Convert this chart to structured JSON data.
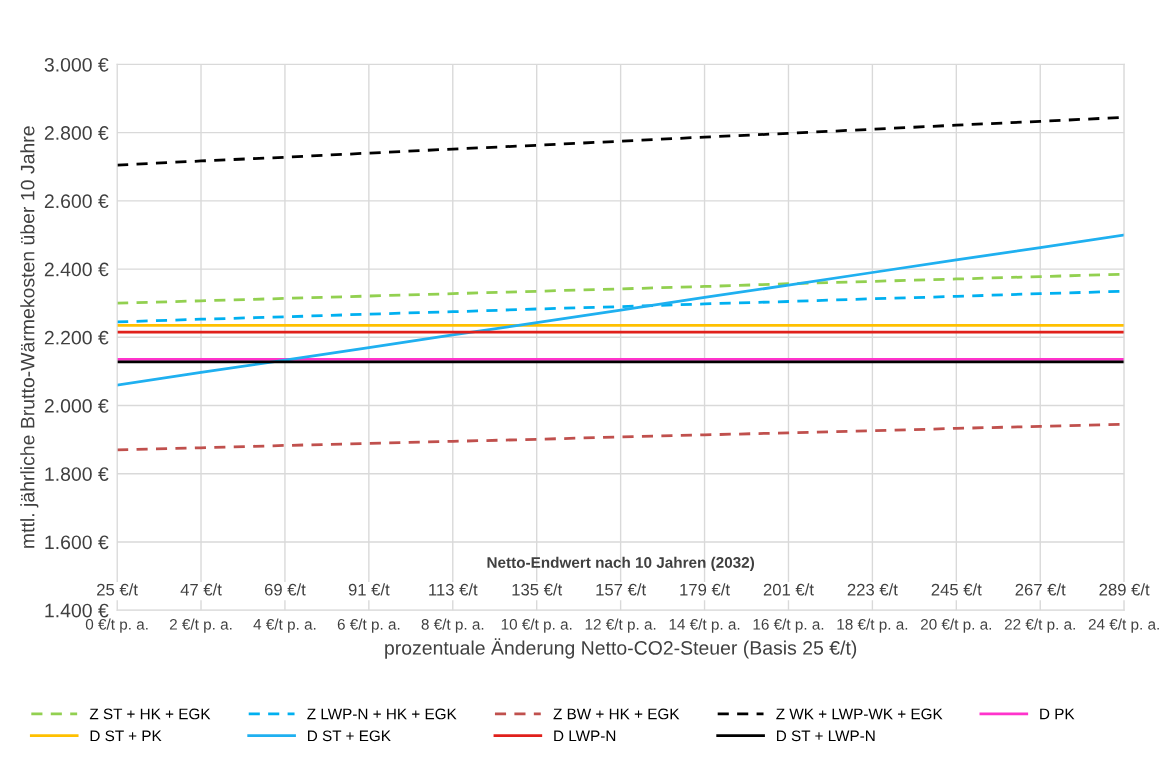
{
  "chart_data": {
    "type": "line",
    "ylabel": "mttl. jährliche Brutto-Wärmekosten über 10 Jahre",
    "xlabel": "prozentuale Änderung Netto-CO2-Steuer (Basis 25 €/t)",
    "categories": [
      "0 €/t p. a.",
      "2 €/t p. a.",
      "4 €/t p. a.",
      "6 €/t p. a.",
      "8 €/t p. a.",
      "10 €/t p. a.",
      "12 €/t p. a.",
      "14 €/t p. a.",
      "16 €/t p. a.",
      "18 €/t p. a.",
      "20 €/t p. a.",
      "22 €/t p. a.",
      "24 €/t p. a."
    ],
    "ylim": [
      1400,
      3000
    ],
    "yticks": [
      {
        "value": 1400,
        "label": "1.400 €"
      },
      {
        "value": 1600,
        "label": "1.600 €"
      },
      {
        "value": 1800,
        "label": "1.800 €"
      },
      {
        "value": 2000,
        "label": "2.000 €"
      },
      {
        "value": 2200,
        "label": "2.200 €"
      },
      {
        "value": 2400,
        "label": "2.400 €"
      },
      {
        "value": 2600,
        "label": "2.600 €"
      },
      {
        "value": 2800,
        "label": "2.800 €"
      },
      {
        "value": 3000,
        "label": "3.000 €"
      }
    ],
    "grid": true,
    "legend": "bottom",
    "series": [
      {
        "name": "Z ST + HK + EGK",
        "color": "#92d050",
        "line_style": "dashed",
        "values": [
          2300,
          2307,
          2314,
          2321,
          2328,
          2335,
          2342,
          2349,
          2357,
          2364,
          2371,
          2378,
          2385
        ]
      },
      {
        "name": "Z LWP-N + HK + EGK",
        "color": "#00b0f0",
        "line_style": "dashed",
        "values": [
          2245,
          2253,
          2260,
          2268,
          2275,
          2283,
          2290,
          2298,
          2305,
          2313,
          2320,
          2328,
          2335
        ]
      },
      {
        "name": "Z BW + HK + EGK",
        "color": "#c0504d",
        "line_style": "dashed",
        "values": [
          1870,
          1876,
          1883,
          1889,
          1895,
          1901,
          1908,
          1914,
          1920,
          1926,
          1933,
          1939,
          1945
        ]
      },
      {
        "name": "Z WK + LWP-WK + EGK",
        "color": "#000000",
        "line_style": "dashed",
        "values": [
          2705,
          2717,
          2728,
          2740,
          2752,
          2763,
          2775,
          2787,
          2798,
          2810,
          2822,
          2833,
          2845
        ]
      },
      {
        "name": "D PK",
        "color": "#ff33cc",
        "line_style": "solid",
        "values": [
          2135,
          2135,
          2135,
          2135,
          2135,
          2135,
          2135,
          2135,
          2135,
          2135,
          2135,
          2135,
          2135
        ]
      },
      {
        "name": "D ST + PK",
        "color": "#ffc000",
        "line_style": "solid",
        "values": [
          2235,
          2235,
          2235,
          2235,
          2235,
          2235,
          2235,
          2235,
          2235,
          2235,
          2235,
          2235,
          2235
        ]
      },
      {
        "name": "D ST + EGK",
        "color": "#1fb0f0",
        "line_style": "solid",
        "values": [
          2060,
          2097,
          2133,
          2170,
          2207,
          2243,
          2280,
          2317,
          2353,
          2390,
          2427,
          2463,
          2500
        ]
      },
      {
        "name": "D LWP-N",
        "color": "#e0201b",
        "line_style": "solid",
        "values": [
          2215,
          2215,
          2215,
          2215,
          2215,
          2215,
          2215,
          2215,
          2215,
          2215,
          2215,
          2215,
          2215
        ]
      },
      {
        "name": "D ST + LWP-N",
        "color": "#000000",
        "line_style": "solid",
        "values": [
          2128,
          2128,
          2128,
          2128,
          2128,
          2128,
          2128,
          2128,
          2128,
          2128,
          2128,
          2128,
          2128
        ]
      }
    ],
    "annotations": [
      "Netto-Endwert nach 10 Jahren (2032)",
      "25 €/t",
      "47 €/t",
      "69 €/t",
      "91 €/t",
      "113 €/t",
      "135 €/t",
      "157 €/t",
      "179 €/t",
      "201 €/t",
      "223 €/t",
      "245 €/t",
      "267 €/t",
      "289 €/t"
    ]
  }
}
